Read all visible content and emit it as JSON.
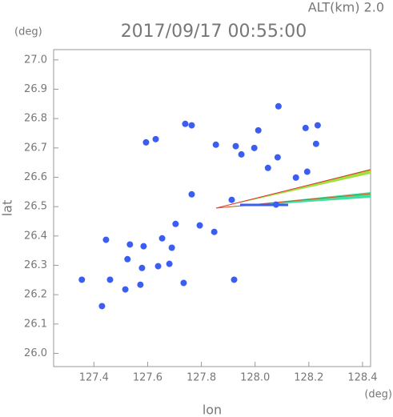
{
  "chart_data": {
    "type": "scatter",
    "header": "ALT(km) 2.0",
    "title": "2017/09/17 00:55:00",
    "x_label": "lon",
    "y_label": "lat",
    "x_unit": "(deg)",
    "y_unit": "(deg)",
    "color": "#3c5ef0",
    "xlim": [
      127.25,
      128.43
    ],
    "ylim": [
      25.955,
      27.035
    ],
    "xticks": [
      127.4,
      127.6,
      127.8,
      {
        "value": 128.0,
        "label": "128.0"
      },
      128.2,
      128.4
    ],
    "yticks": [
      {
        "value": 26.0,
        "label": "26.0"
      },
      26.1,
      26.2,
      26.3,
      26.4,
      26.5,
      26.6,
      26.7,
      26.8,
      26.9,
      {
        "value": 27.0,
        "label": "27.0"
      }
    ],
    "x": [
      128.087,
      128.012,
      128.188,
      128.233,
      128.227,
      127.928,
      127.949,
      127.997,
      128.048,
      128.084,
      128.152,
      128.194,
      127.594,
      127.63,
      127.764,
      127.74,
      127.854,
      127.764,
      127.913,
      127.794,
      127.848,
      127.654,
      127.69,
      127.585,
      127.534,
      127.445,
      127.525,
      127.579,
      127.639,
      127.46,
      127.573,
      127.517,
      127.734,
      127.922,
      127.355,
      127.43,
      127.704,
      128.078,
      127.681
    ],
    "values": [
      26.842,
      26.76,
      26.768,
      26.777,
      26.714,
      26.706,
      26.678,
      26.7,
      26.632,
      26.668,
      26.599,
      26.619,
      26.719,
      26.73,
      26.777,
      26.782,
      26.711,
      26.542,
      26.523,
      26.436,
      26.414,
      26.392,
      26.36,
      26.365,
      26.371,
      26.387,
      26.321,
      26.291,
      26.297,
      26.251,
      26.234,
      26.218,
      26.24,
      26.251,
      26.251,
      26.161,
      26.441,
      26.507,
      26.305
    ]
  }
}
